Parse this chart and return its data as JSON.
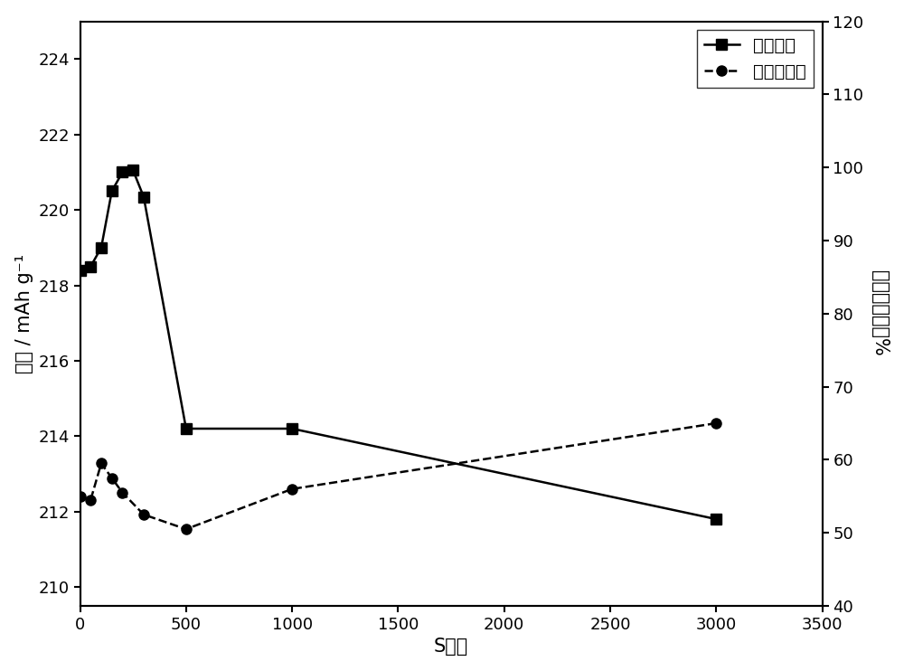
{
  "solid_x": [
    0,
    50,
    100,
    150,
    200,
    250,
    300,
    500,
    1000,
    3000
  ],
  "solid_y": [
    218.4,
    218.5,
    219.0,
    220.5,
    221.0,
    221.05,
    220.35,
    214.2,
    214.2,
    211.8
  ],
  "dashed_x": [
    0,
    50,
    100,
    150,
    200,
    300,
    500,
    1000,
    3000
  ],
  "dashed_y": [
    55.0,
    54.5,
    59.5,
    57.5,
    55.5,
    52.5,
    50.5,
    56.0,
    65.0
  ],
  "solid_label": "放电容量",
  "dashed_label": "电阵增加率",
  "xlabel": "S的量",
  "ylabel_left": "容量 / mAh g⁻¹",
  "ylabel_right": "电阵增加率／%",
  "xlim": [
    0,
    3500
  ],
  "ylim_left": [
    209.5,
    225
  ],
  "ylim_right": [
    40,
    120
  ],
  "xticks": [
    0,
    500,
    1000,
    1500,
    2000,
    2500,
    3000,
    3500
  ],
  "yticks_left": [
    210,
    212,
    214,
    216,
    218,
    220,
    222,
    224
  ],
  "yticks_right": [
    40,
    50,
    60,
    70,
    80,
    90,
    100,
    110,
    120
  ],
  "bg_color": "#ffffff",
  "line_color": "#000000",
  "font_size_label": 15,
  "font_size_tick": 13,
  "font_size_legend": 14
}
